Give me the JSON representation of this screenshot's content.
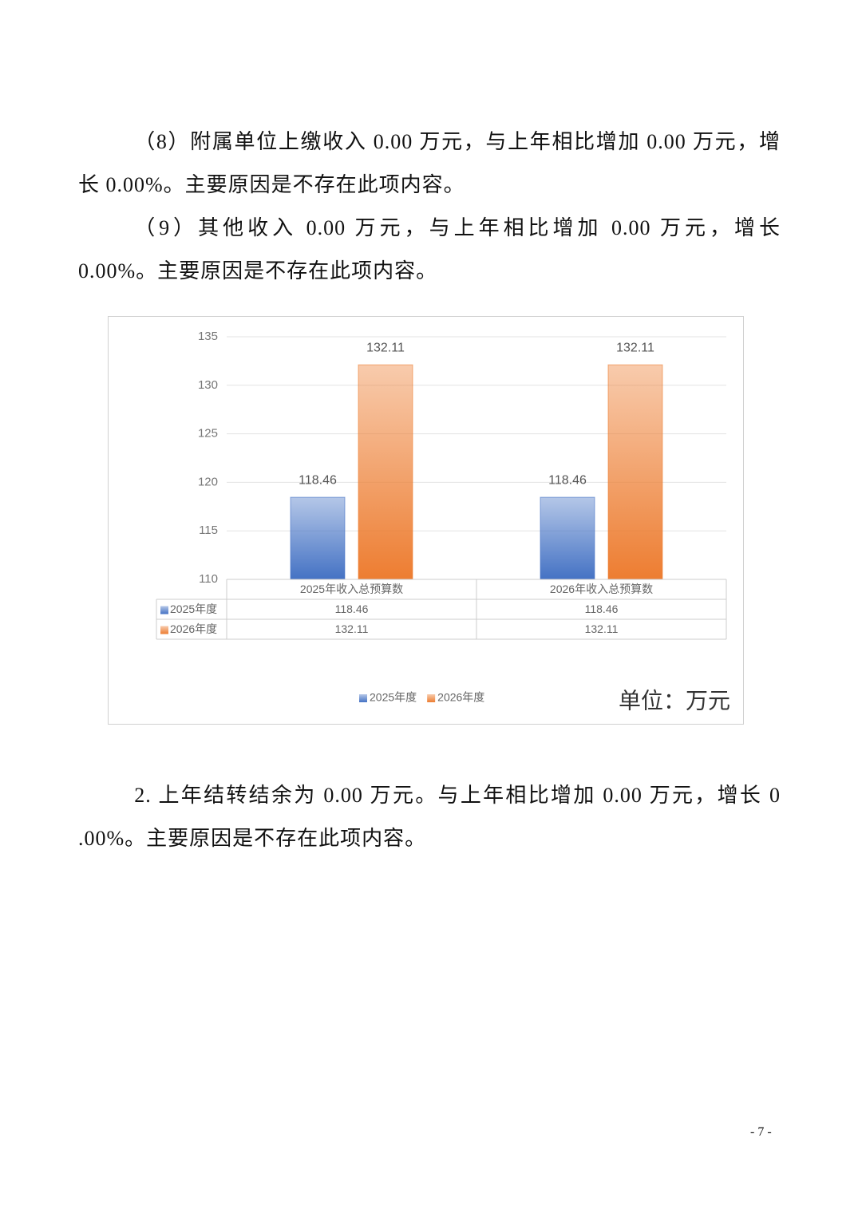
{
  "paragraphs": [
    "（8）附属单位上缴收入 0.00 万元，与上年相比增加 0.00 万元，增长 0.00%。主要原因是不存在此项内容。",
    "（9）其他收入 0.00 万元，与上年相比增加 0.00 万元，增长 0.00%。主要原因是不存在此项内容。",
    "2. 上年结转结余为 0.00 万元。与上年相比增加 0.00 万元，增长 0 .00%。主要原因是不存在此项内容。"
  ],
  "chart_data": {
    "type": "bar",
    "categories": [
      "2025年收入总预算数",
      "2026年收入总预算数"
    ],
    "series": [
      {
        "name": "2025年度",
        "color": "#4472c4",
        "values": [
          118.46,
          118.46
        ]
      },
      {
        "name": "2026年度",
        "color": "#ed7d31",
        "values": [
          132.11,
          132.11
        ]
      }
    ],
    "ylim": [
      110,
      135
    ],
    "yticks": [
      110,
      115,
      120,
      125,
      130,
      135
    ],
    "grid": true,
    "legend": "bottom",
    "unit_note": "单位：万元"
  },
  "page_number": "- 7 -"
}
